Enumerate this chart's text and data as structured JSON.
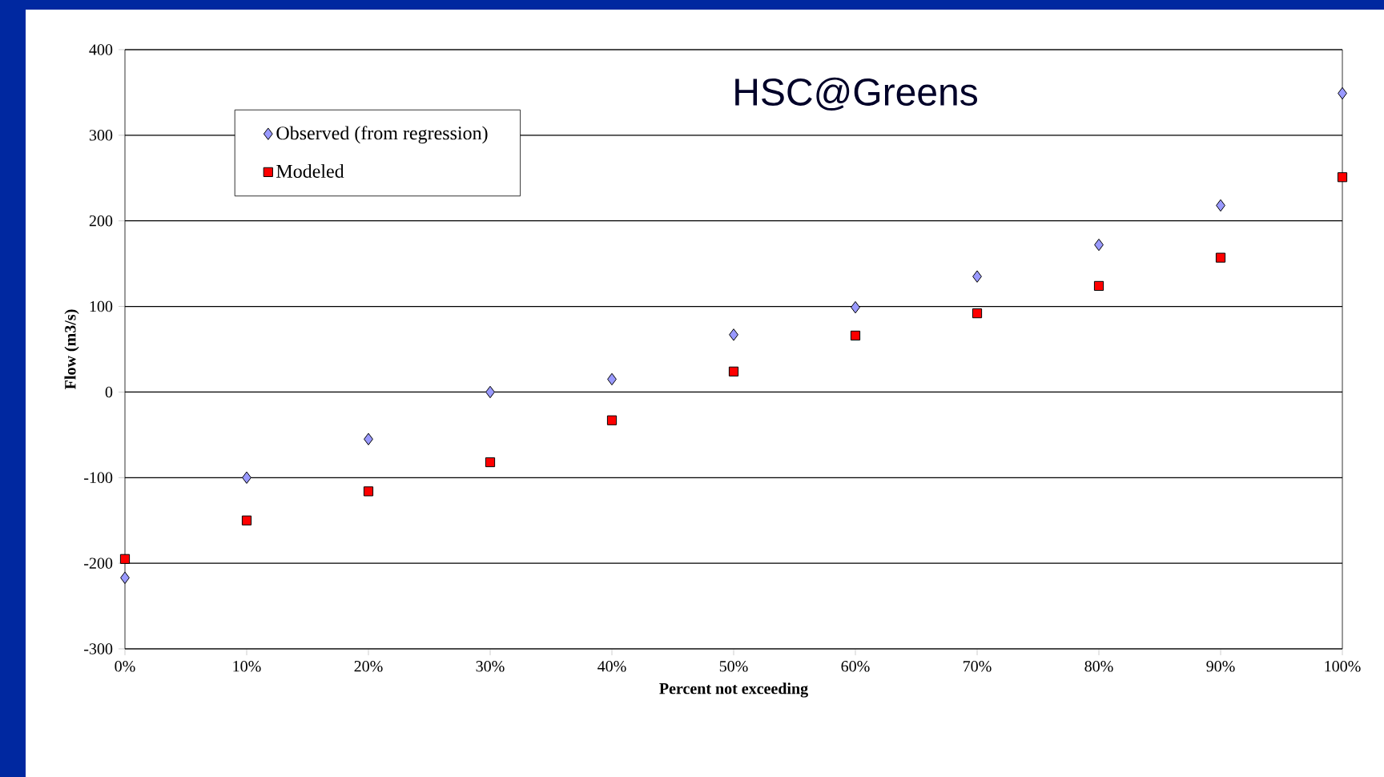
{
  "chart_data": {
    "type": "scatter",
    "title": "HSC@Greens",
    "xlabel": "Percent not exceeding",
    "ylabel": "Flow (m3/s)",
    "x": [
      0,
      10,
      20,
      30,
      40,
      50,
      60,
      70,
      80,
      90,
      100
    ],
    "series": [
      {
        "name": "Observed (from regression)",
        "color": "#9999ff",
        "marker": "diamond",
        "values": [
          -217,
          -100,
          -55,
          0,
          15,
          67,
          99,
          135,
          172,
          218,
          349
        ]
      },
      {
        "name": "Modeled",
        "color": "#ff0000",
        "marker": "square",
        "values": [
          -195,
          -150,
          -116,
          -82,
          -33,
          24,
          66,
          92,
          124,
          157,
          251
        ]
      }
    ],
    "xlim": [
      0,
      100
    ],
    "xticks": [
      {
        "value": 0,
        "label": "0%"
      },
      {
        "value": 10,
        "label": "10%"
      },
      {
        "value": 20,
        "label": "20%"
      },
      {
        "value": 30,
        "label": "30%"
      },
      {
        "value": 40,
        "label": "40%"
      },
      {
        "value": 50,
        "label": "50%"
      },
      {
        "value": 60,
        "label": "60%"
      },
      {
        "value": 70,
        "label": "70%"
      },
      {
        "value": 80,
        "label": "80%"
      },
      {
        "value": 90,
        "label": "90%"
      },
      {
        "value": 100,
        "label": "100%"
      }
    ],
    "ylim": [
      -300,
      400
    ],
    "yticks": [
      -300,
      -200,
      -100,
      0,
      100,
      200,
      300,
      400
    ],
    "grid": "y",
    "legend": "top left"
  }
}
